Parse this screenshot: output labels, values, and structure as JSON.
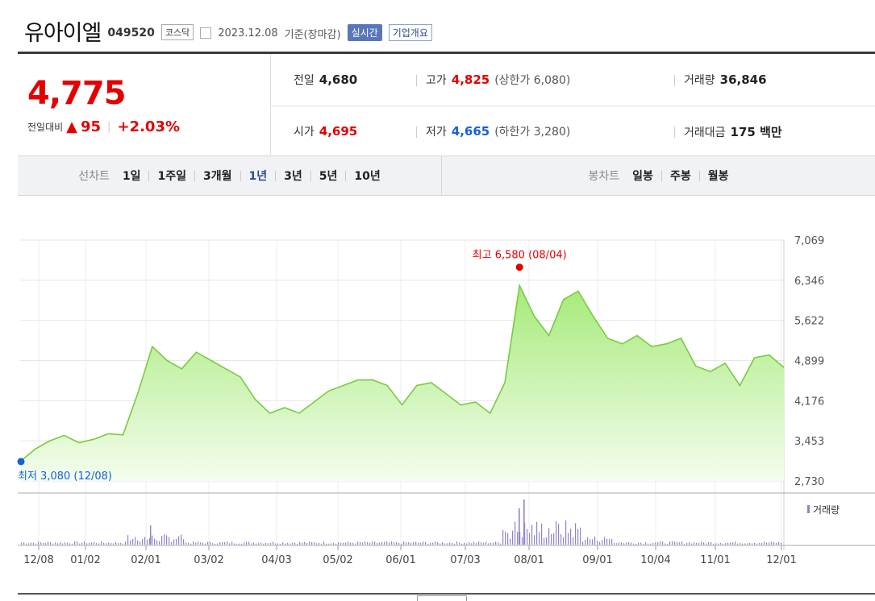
{
  "header": {
    "name": "유아이엘",
    "code": "049520",
    "market": "코스닥",
    "date": "2023.12.08",
    "basis": "기준(장마감)",
    "realtime": "실시간",
    "company": "기업개요"
  },
  "price": {
    "current": "4,775",
    "change_label": "전일대비",
    "change_arrow": "▲",
    "change": "95",
    "change_pct": "+2.03%"
  },
  "quotes": {
    "prev": {
      "label": "전일",
      "value": "4,680"
    },
    "open": {
      "label": "시가",
      "value": "4,695"
    },
    "high": {
      "label": "고가",
      "value": "4,825",
      "limit": "(상한가 6,080)"
    },
    "low": {
      "label": "저가",
      "value": "4,665",
      "limit": "(하한가 3,280)"
    },
    "volume": {
      "label": "거래량",
      "value": "36,846"
    },
    "amount": {
      "label": "거래대금",
      "value": "175 백만"
    }
  },
  "tabs": {
    "line_label": "선차트",
    "line": [
      "1일",
      "1주일",
      "3개월",
      "1년",
      "3년",
      "5년",
      "10년"
    ],
    "selected": "1년",
    "candle_label": "봉차트",
    "candle": [
      "일봉",
      "주봉",
      "월봉"
    ]
  },
  "chart_data": {
    "type": "area",
    "x_tick_labels": [
      "12/08",
      "01/02",
      "02/01",
      "03/02",
      "04/03",
      "05/02",
      "06/01",
      "07/03",
      "08/01",
      "09/01",
      "10/04",
      "11/01",
      "12/01"
    ],
    "yticks": [
      "7,069",
      "6,346",
      "5,622",
      "4,899",
      "4,176",
      "3,453",
      "2,730"
    ],
    "ylim": [
      2730,
      7069
    ],
    "grid": true,
    "annotations": {
      "high_label": "최고 6,580 (08/04)",
      "low_label": "최저 3,080 (12/08)"
    },
    "series_points": [
      [
        "12/08",
        3080
      ],
      [
        "12/15",
        3300
      ],
      [
        "12/22",
        3450
      ],
      [
        "12/29",
        3550
      ],
      [
        "01/05",
        3420
      ],
      [
        "01/12",
        3480
      ],
      [
        "01/19",
        3580
      ],
      [
        "01/26",
        3560
      ],
      [
        "02/02",
        4300
      ],
      [
        "02/09",
        5150
      ],
      [
        "02/16",
        4900
      ],
      [
        "02/23",
        4750
      ],
      [
        "03/02",
        5050
      ],
      [
        "03/09",
        4900
      ],
      [
        "03/16",
        4750
      ],
      [
        "03/23",
        4600
      ],
      [
        "03/30",
        4200
      ],
      [
        "04/06",
        3950
      ],
      [
        "04/13",
        4050
      ],
      [
        "04/20",
        3950
      ],
      [
        "04/27",
        4150
      ],
      [
        "05/04",
        4350
      ],
      [
        "05/11",
        4450
      ],
      [
        "05/18",
        4550
      ],
      [
        "05/25",
        4550
      ],
      [
        "06/01",
        4450
      ],
      [
        "06/08",
        4100
      ],
      [
        "06/15",
        4450
      ],
      [
        "06/22",
        4500
      ],
      [
        "06/29",
        4300
      ],
      [
        "07/06",
        4100
      ],
      [
        "07/13",
        4150
      ],
      [
        "07/20",
        3950
      ],
      [
        "07/27",
        4500
      ],
      [
        "08/04",
        6250
      ],
      [
        "08/11",
        5700
      ],
      [
        "08/18",
        5350
      ],
      [
        "08/25",
        6000
      ],
      [
        "09/01",
        6150
      ],
      [
        "09/08",
        5700
      ],
      [
        "09/15",
        5300
      ],
      [
        "09/22",
        5200
      ],
      [
        "09/29",
        5350
      ],
      [
        "10/06",
        5150
      ],
      [
        "10/13",
        5200
      ],
      [
        "10/20",
        5300
      ],
      [
        "10/27",
        4800
      ],
      [
        "11/03",
        4700
      ],
      [
        "11/10",
        4850
      ],
      [
        "11/17",
        4450
      ],
      [
        "11/24",
        4950
      ],
      [
        "12/01",
        5000
      ],
      [
        "12/08",
        4775
      ]
    ],
    "volume_label": "거래량"
  }
}
